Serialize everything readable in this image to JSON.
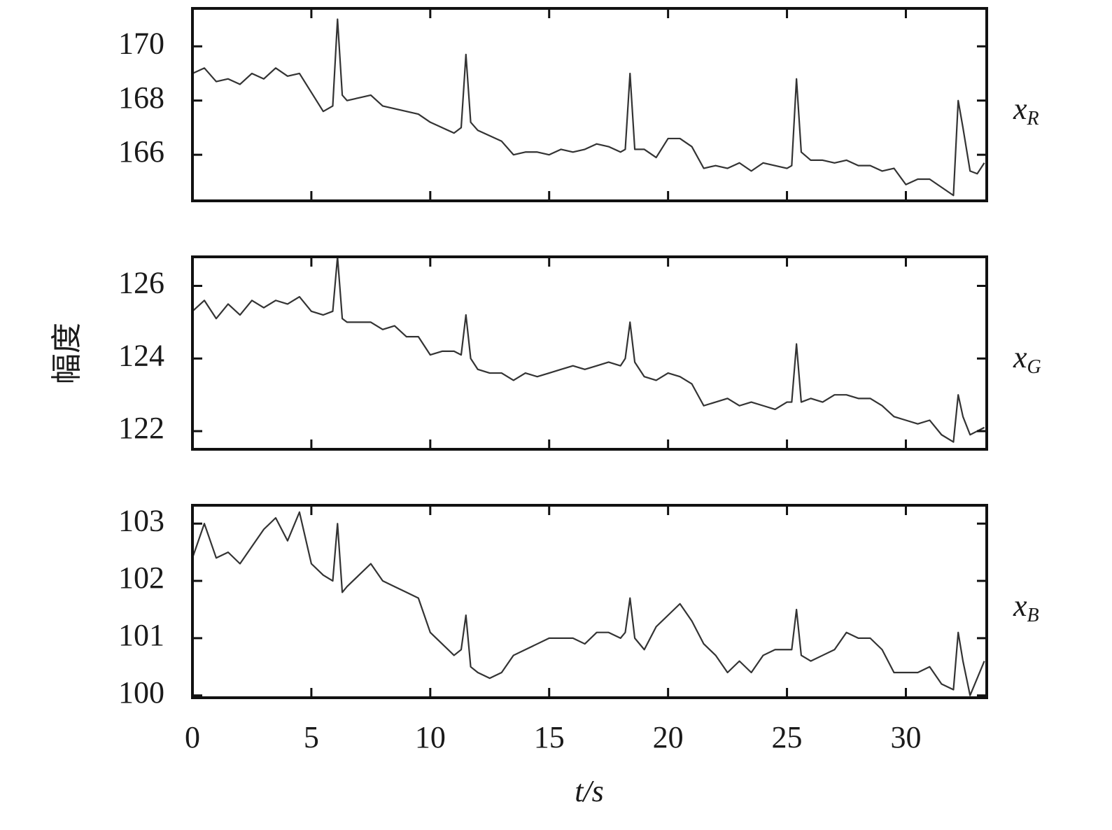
{
  "chart_data": [
    {
      "type": "line",
      "x": [
        0,
        0.5,
        1,
        1.5,
        2,
        2.5,
        3,
        3.5,
        4,
        4.5,
        5,
        5.5,
        5.9,
        6.1,
        6.3,
        6.5,
        7,
        7.5,
        8,
        8.5,
        9,
        9.5,
        10,
        10.5,
        11,
        11.3,
        11.5,
        11.7,
        12,
        12.5,
        13,
        13.5,
        14,
        14.5,
        15,
        15.5,
        16,
        16.5,
        17,
        17.5,
        18,
        18.2,
        18.4,
        18.6,
        19,
        19.5,
        20,
        20.5,
        21,
        21.5,
        22,
        22.5,
        23,
        23.5,
        24,
        24.5,
        25,
        25.2,
        25.4,
        25.6,
        26,
        26.5,
        27,
        27.5,
        28,
        28.5,
        29,
        29.5,
        30,
        30.5,
        31,
        31.5,
        32,
        32.2,
        32.4,
        32.7,
        33,
        33.3
      ],
      "series": [
        {
          "name": "xR",
          "color": "#333333",
          "values": [
            169.0,
            169.2,
            168.7,
            168.8,
            168.6,
            169.0,
            168.8,
            169.2,
            168.9,
            169.0,
            168.3,
            167.6,
            167.8,
            171.0,
            168.2,
            168.0,
            168.1,
            168.2,
            167.8,
            167.7,
            167.6,
            167.5,
            167.2,
            167.0,
            166.8,
            167.0,
            169.7,
            167.2,
            166.9,
            166.7,
            166.5,
            166.0,
            166.1,
            166.1,
            166.0,
            166.2,
            166.1,
            166.2,
            166.4,
            166.3,
            166.1,
            166.2,
            169.0,
            166.2,
            166.2,
            165.9,
            166.6,
            166.6,
            166.3,
            165.5,
            165.6,
            165.5,
            165.7,
            165.4,
            165.7,
            165.6,
            165.5,
            165.6,
            168.8,
            166.1,
            165.8,
            165.8,
            165.7,
            165.8,
            165.6,
            165.6,
            165.4,
            165.5,
            164.9,
            165.1,
            165.1,
            164.8,
            164.5,
            168.0,
            167.0,
            165.4,
            165.3,
            165.7
          ]
        }
      ],
      "xlim": [
        0,
        33.4
      ],
      "xticks": [
        0,
        5,
        10,
        15,
        20,
        25,
        30
      ],
      "ylim": [
        164.3,
        171.4
      ],
      "yticks": [
        166,
        168,
        170
      ]
    },
    {
      "type": "line",
      "y_label": "幅度",
      "x": [
        0,
        0.5,
        1,
        1.5,
        2,
        2.5,
        3,
        3.5,
        4,
        4.5,
        5,
        5.5,
        5.9,
        6.1,
        6.3,
        6.5,
        7,
        7.5,
        8,
        8.5,
        9,
        9.5,
        10,
        10.5,
        11,
        11.3,
        11.5,
        11.7,
        12,
        12.5,
        13,
        13.5,
        14,
        14.5,
        15,
        15.5,
        16,
        16.5,
        17,
        17.5,
        18,
        18.2,
        18.4,
        18.6,
        19,
        19.5,
        20,
        20.5,
        21,
        21.5,
        22,
        22.5,
        23,
        23.5,
        24,
        24.5,
        25,
        25.2,
        25.4,
        25.6,
        26,
        26.5,
        27,
        27.5,
        28,
        28.5,
        29,
        29.5,
        30,
        30.5,
        31,
        31.5,
        32,
        32.2,
        32.4,
        32.7,
        33,
        33.3
      ],
      "series": [
        {
          "name": "xG",
          "color": "#333333",
          "values": [
            125.3,
            125.6,
            125.1,
            125.5,
            125.2,
            125.6,
            125.4,
            125.6,
            125.5,
            125.7,
            125.3,
            125.2,
            125.3,
            126.8,
            125.1,
            125.0,
            125.0,
            125.0,
            124.8,
            124.9,
            124.6,
            124.6,
            124.1,
            124.2,
            124.2,
            124.1,
            125.2,
            124.0,
            123.7,
            123.6,
            123.6,
            123.4,
            123.6,
            123.5,
            123.6,
            123.7,
            123.8,
            123.7,
            123.8,
            123.9,
            123.8,
            124.0,
            125.0,
            123.9,
            123.5,
            123.4,
            123.6,
            123.5,
            123.3,
            122.7,
            122.8,
            122.9,
            122.7,
            122.8,
            122.7,
            122.6,
            122.8,
            122.8,
            124.4,
            122.8,
            122.9,
            122.8,
            123.0,
            123.0,
            122.9,
            122.9,
            122.7,
            122.4,
            122.3,
            122.2,
            122.3,
            121.9,
            121.7,
            123.0,
            122.4,
            121.9,
            122.0,
            122.1
          ]
        }
      ],
      "xlim": [
        0,
        33.4
      ],
      "xticks": [
        0,
        5,
        10,
        15,
        20,
        25,
        30
      ],
      "ylim": [
        121.5,
        126.8
      ],
      "yticks": [
        122,
        124,
        126
      ]
    },
    {
      "type": "line",
      "x_label": "t/s",
      "x": [
        0,
        0.5,
        1,
        1.5,
        2,
        2.5,
        3,
        3.5,
        4,
        4.5,
        5,
        5.5,
        5.9,
        6.1,
        6.3,
        6.5,
        7,
        7.5,
        8,
        8.5,
        9,
        9.5,
        10,
        10.5,
        11,
        11.3,
        11.5,
        11.7,
        12,
        12.5,
        13,
        13.5,
        14,
        14.5,
        15,
        15.5,
        16,
        16.5,
        17,
        17.5,
        18,
        18.2,
        18.4,
        18.6,
        19,
        19.5,
        20,
        20.5,
        21,
        21.5,
        22,
        22.5,
        23,
        23.5,
        24,
        24.5,
        25,
        25.2,
        25.4,
        25.6,
        26,
        26.5,
        27,
        27.5,
        28,
        28.5,
        29,
        29.5,
        30,
        30.5,
        31,
        31.5,
        32,
        32.2,
        32.4,
        32.7,
        33,
        33.3
      ],
      "series": [
        {
          "name": "xB",
          "color": "#333333",
          "values": [
            102.4,
            103.0,
            102.4,
            102.5,
            102.3,
            102.6,
            102.9,
            103.1,
            102.7,
            103.2,
            102.3,
            102.1,
            102.0,
            103.0,
            101.8,
            101.9,
            102.1,
            102.3,
            102.0,
            101.9,
            101.8,
            101.7,
            101.1,
            100.9,
            100.7,
            100.8,
            101.4,
            100.5,
            100.4,
            100.3,
            100.4,
            100.7,
            100.8,
            100.9,
            101.0,
            101.0,
            101.0,
            100.9,
            101.1,
            101.1,
            101.0,
            101.1,
            101.7,
            101.0,
            100.8,
            101.2,
            101.4,
            101.6,
            101.3,
            100.9,
            100.7,
            100.4,
            100.6,
            100.4,
            100.7,
            100.8,
            100.8,
            100.8,
            101.5,
            100.7,
            100.6,
            100.7,
            100.8,
            101.1,
            101.0,
            101.0,
            100.8,
            100.4,
            100.4,
            100.4,
            100.5,
            100.2,
            100.1,
            101.1,
            100.6,
            100.0,
            100.3,
            100.6
          ]
        }
      ],
      "xlim": [
        0,
        33.4
      ],
      "xticks": [
        0,
        5,
        10,
        15,
        20,
        25,
        30
      ],
      "ylim": [
        99.96,
        103.32
      ],
      "yticks": [
        100,
        101,
        102,
        103
      ]
    }
  ]
}
